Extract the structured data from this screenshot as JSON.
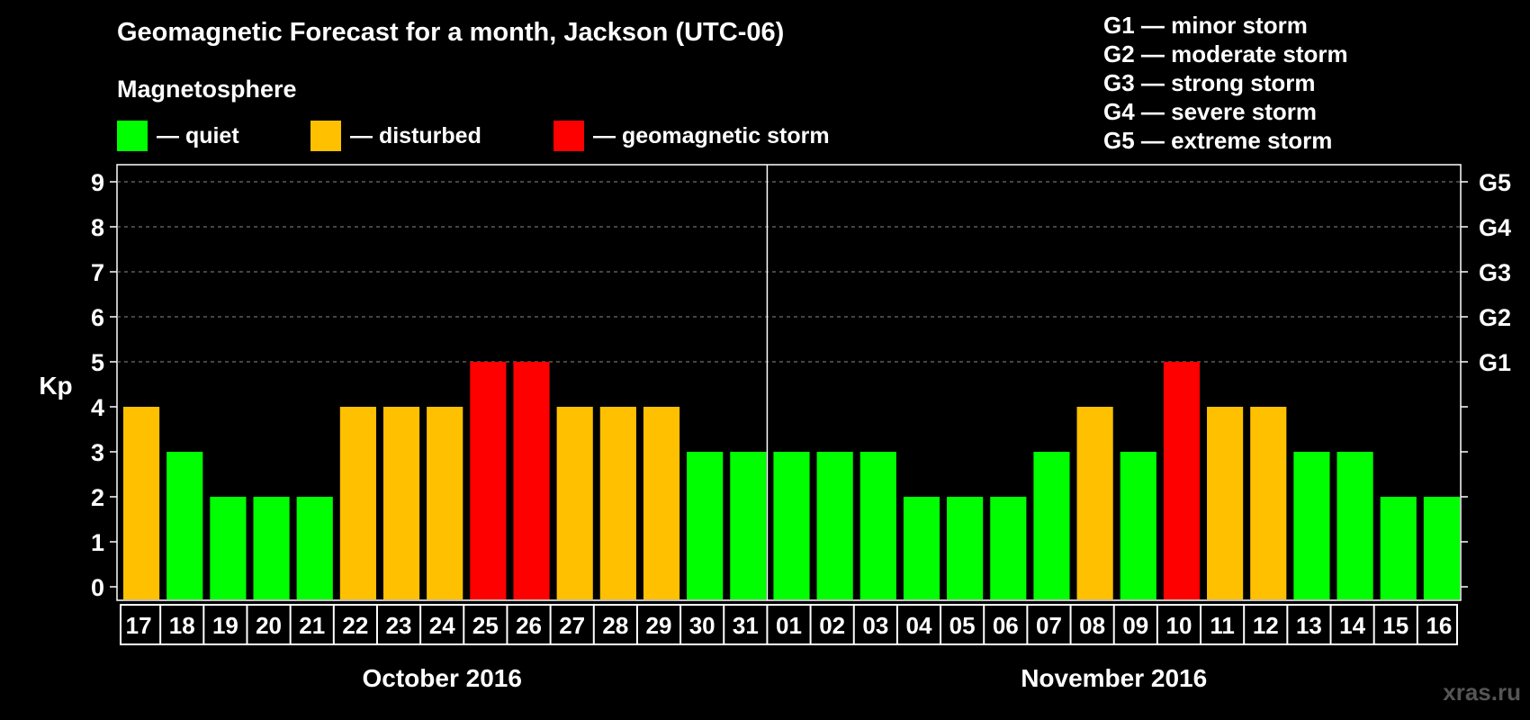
{
  "title": "Geomagnetic Forecast for a month, Jackson (UTC-06)",
  "magnetosphere_label": "Magnetosphere",
  "legend": {
    "quiet": {
      "label": "— quiet",
      "color": "#00ff00"
    },
    "disturbed": {
      "label": "— disturbed",
      "color": "#ffc000"
    },
    "storm": {
      "label": "— geomagnetic storm",
      "color": "#ff0000"
    }
  },
  "g_scale": [
    "G1 — minor storm",
    "G2 — moderate storm",
    "G3 — strong storm",
    "G4 — severe storm",
    "G5 — extreme storm"
  ],
  "watermark": "xras.ru",
  "chart_data": {
    "type": "bar",
    "ylabel": "Kp",
    "ylim": [
      0,
      9
    ],
    "yticks": [
      "0",
      "1",
      "2",
      "3",
      "4",
      "5",
      "6",
      "7",
      "8",
      "9"
    ],
    "right_axis_labels": [
      {
        "kp": 5,
        "label": "G1"
      },
      {
        "kp": 6,
        "label": "G2"
      },
      {
        "kp": 7,
        "label": "G3"
      },
      {
        "kp": 8,
        "label": "G4"
      },
      {
        "kp": 9,
        "label": "G5"
      }
    ],
    "categories": [
      "17",
      "18",
      "19",
      "20",
      "21",
      "22",
      "23",
      "24",
      "25",
      "26",
      "27",
      "28",
      "29",
      "30",
      "31",
      "01",
      "02",
      "03",
      "04",
      "05",
      "06",
      "07",
      "08",
      "09",
      "10",
      "11",
      "12",
      "13",
      "14",
      "15",
      "16"
    ],
    "values": [
      4,
      3,
      2,
      2,
      2,
      4,
      4,
      4,
      5,
      5,
      4,
      4,
      4,
      3,
      3,
      3,
      3,
      3,
      2,
      2,
      2,
      3,
      4,
      3,
      5,
      4,
      4,
      3,
      3,
      2,
      2
    ],
    "months": [
      {
        "label": "October 2016",
        "days": 15
      },
      {
        "label": "November 2016",
        "days": 16
      }
    ],
    "colors": {
      "quiet": "#00ff00",
      "disturbed": "#ffc000",
      "storm": "#ff0000"
    }
  }
}
